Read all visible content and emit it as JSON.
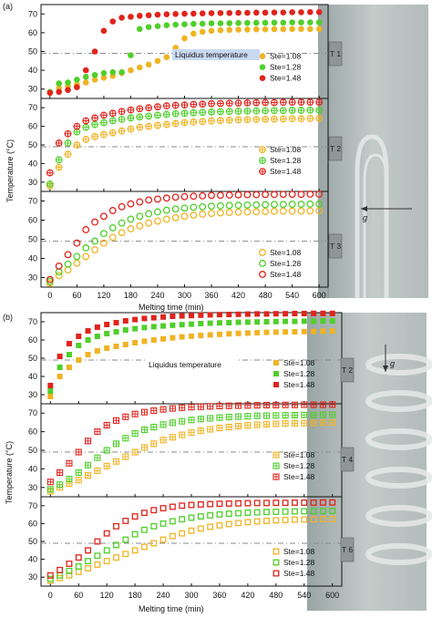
{
  "figure": {
    "panel_labels": [
      "(a)",
      "(b)"
    ],
    "liquidus_label": "Liquidus temperature",
    "gravity_label": "g",
    "colors": {
      "Ste=1.08": "#f0b323",
      "Ste=1.28": "#4fcf2a",
      "Ste=1.48": "#e0241c",
      "liquidus_box": "#c9d9f2",
      "photo": "#aeb8b8"
    }
  },
  "chart_data": [
    {
      "type": "scatter",
      "panel": "(a)",
      "marker": "filled-circle",
      "xlabel": "Melting time (min)",
      "ylabel": "Temperature (°C)",
      "xlim": [
        -20,
        620
      ],
      "ylim": [
        25,
        75
      ],
      "xticks": [
        0,
        60,
        120,
        180,
        240,
        300,
        360,
        420,
        480,
        540,
        600
      ],
      "yticks": [
        30,
        40,
        50,
        60,
        70
      ],
      "thermocouple": "T 1",
      "liquidus": 49,
      "legend_position": "right",
      "x": [
        0,
        20,
        40,
        60,
        80,
        100,
        120,
        140,
        160,
        180,
        200,
        220,
        240,
        260,
        280,
        300,
        320,
        340,
        360,
        380,
        400,
        420,
        440,
        460,
        480,
        500,
        520,
        540,
        560,
        580,
        600
      ],
      "series": [
        {
          "name": "Ste=1.08",
          "values": [
            28,
            30.5,
            31.5,
            32.5,
            33.5,
            35,
            36,
            37,
            38.5,
            40,
            41.5,
            43,
            45,
            47,
            52,
            57,
            59.5,
            60.5,
            61,
            61.3,
            61.5,
            61.6,
            61.7,
            61.8,
            61.8,
            61.9,
            61.9,
            62,
            62,
            62,
            62
          ]
        },
        {
          "name": "Ste=1.28",
          "values": [
            28.5,
            33,
            33.5,
            35,
            36.5,
            37.5,
            38.5,
            39,
            39,
            48,
            62,
            63,
            63.5,
            64,
            64.3,
            64.5,
            64.7,
            64.8,
            65,
            65,
            65.1,
            65.2,
            65.2,
            65.3,
            65.3,
            65.4,
            65.4,
            65.5,
            65.5,
            65.5,
            65.5
          ]
        },
        {
          "name": "Ste=1.48",
          "values": [
            28,
            28.5,
            29.5,
            31,
            40,
            50,
            61,
            66,
            68,
            68.5,
            69,
            69.3,
            69.6,
            69.8,
            70,
            70.1,
            70.2,
            70.3,
            70.4,
            70.5,
            70.5,
            70.6,
            70.6,
            70.7,
            70.7,
            70.8,
            70.8,
            70.9,
            70.9,
            71,
            71
          ]
        }
      ]
    },
    {
      "type": "scatter",
      "panel": "(a)",
      "marker": "crossed-circle",
      "xlabel": "Melting time (min)",
      "ylabel": "Temperature (°C)",
      "xlim": [
        -20,
        620
      ],
      "ylim": [
        25,
        75
      ],
      "xticks": [
        0,
        60,
        120,
        180,
        240,
        300,
        360,
        420,
        480,
        540,
        600
      ],
      "yticks": [
        30,
        40,
        50,
        60,
        70
      ],
      "thermocouple": "T 2",
      "liquidus": 49,
      "legend_position": "right",
      "x": [
        0,
        20,
        40,
        60,
        80,
        100,
        120,
        140,
        160,
        180,
        200,
        220,
        240,
        260,
        280,
        300,
        320,
        340,
        360,
        380,
        400,
        420,
        440,
        460,
        480,
        500,
        520,
        540,
        560,
        580,
        600
      ],
      "series": [
        {
          "name": "Ste=1.08",
          "values": [
            28,
            38,
            45,
            50,
            53,
            54.5,
            55.5,
            56.5,
            57.5,
            58.5,
            59.5,
            60,
            60.5,
            61,
            61.5,
            62,
            62.3,
            62.6,
            62.9,
            63.1,
            63.3,
            63.5,
            63.6,
            63.7,
            63.8,
            63.9,
            64,
            64.1,
            64.1,
            64.2,
            64.2
          ]
        },
        {
          "name": "Ste=1.28",
          "values": [
            29,
            42,
            51,
            57,
            59.5,
            61,
            62,
            63,
            63.8,
            64.5,
            65,
            65.5,
            66,
            66.4,
            66.8,
            67,
            67.3,
            67.5,
            67.7,
            67.9,
            68,
            68.1,
            68.2,
            68.3,
            68.4,
            68.5,
            68.5,
            68.6,
            68.6,
            68.7,
            68.7
          ]
        },
        {
          "name": "Ste=1.48",
          "values": [
            35,
            51,
            56,
            60,
            63,
            64.5,
            66,
            67,
            68,
            68.8,
            69.5,
            70,
            70.5,
            71,
            71.3,
            71.5,
            71.8,
            72,
            72.2,
            72.3,
            72.4,
            72.5,
            72.6,
            72.7,
            72.8,
            72.8,
            72.9,
            73,
            73,
            73,
            73
          ]
        }
      ]
    },
    {
      "type": "scatter",
      "panel": "(a)",
      "marker": "open-circle",
      "xlabel": "Melting time (min)",
      "ylabel": "Temperature (°C)",
      "xlim": [
        -20,
        620
      ],
      "ylim": [
        25,
        75
      ],
      "xticks": [
        0,
        60,
        120,
        180,
        240,
        300,
        360,
        420,
        480,
        540,
        600
      ],
      "yticks": [
        30,
        40,
        50,
        60,
        70
      ],
      "thermocouple": "T 3",
      "liquidus": 49,
      "legend_position": "bottom-right",
      "x": [
        0,
        20,
        40,
        60,
        80,
        100,
        120,
        140,
        160,
        180,
        200,
        220,
        240,
        260,
        280,
        300,
        320,
        340,
        360,
        380,
        400,
        420,
        440,
        460,
        480,
        500,
        520,
        540,
        560,
        580,
        600
      ],
      "series": [
        {
          "name": "Ste=1.08",
          "values": [
            27,
            31,
            34,
            37.5,
            41,
            44.5,
            48,
            51,
            53.5,
            55.5,
            57,
            58.5,
            59.5,
            60.5,
            61.3,
            62,
            62.6,
            63.1,
            63.5,
            63.8,
            64,
            64.2,
            64.3,
            64.4,
            64.5,
            64.6,
            64.7,
            64.7,
            64.8,
            64.8,
            64.9
          ]
        },
        {
          "name": "Ste=1.28",
          "values": [
            28,
            33,
            37,
            41,
            45.5,
            49,
            53,
            56,
            58.5,
            60.5,
            62,
            63.3,
            64.3,
            65.2,
            65.8,
            66.3,
            66.7,
            67,
            67.3,
            67.5,
            67.7,
            67.8,
            67.9,
            68,
            68.1,
            68.2,
            68.2,
            68.3,
            68.3,
            68.4,
            68.4
          ]
        },
        {
          "name": "Ste=1.48",
          "values": [
            29,
            36,
            42,
            48,
            55,
            59,
            62,
            65,
            67,
            68.5,
            69.5,
            70.5,
            71,
            71.5,
            72,
            72.3,
            72.5,
            72.7,
            72.9,
            73,
            73.1,
            73.2,
            73.3,
            73.3,
            73.4,
            73.4,
            73.5,
            73.5,
            73.5,
            73.6,
            73.6
          ]
        }
      ]
    },
    {
      "type": "scatter",
      "panel": "(b)",
      "marker": "filled-square",
      "xlabel": "Melting time (min)",
      "ylabel": "Temperature (°C)",
      "xlim": [
        -20,
        620
      ],
      "ylim": [
        25,
        75
      ],
      "xticks": [
        0,
        60,
        120,
        180,
        240,
        300,
        360,
        420,
        480,
        540,
        600
      ],
      "yticks": [
        30,
        40,
        50,
        60,
        70
      ],
      "thermocouple": "T 2",
      "liquidus": 49,
      "legend_position": "right",
      "x": [
        0,
        20,
        40,
        60,
        80,
        100,
        120,
        140,
        160,
        180,
        200,
        220,
        240,
        260,
        280,
        300,
        320,
        340,
        360,
        380,
        400,
        420,
        440,
        460,
        480,
        500,
        520,
        540,
        560,
        580,
        600
      ],
      "series": [
        {
          "name": "Ste=1.08",
          "values": [
            29,
            40,
            45,
            49,
            52,
            54,
            55.5,
            56.5,
            57.5,
            58.5,
            59.3,
            60,
            60.6,
            61.2,
            61.7,
            62.1,
            62.5,
            62.8,
            63.1,
            63.4,
            63.6,
            63.8,
            64,
            64.2,
            64.3,
            64.4,
            64.5,
            64.6,
            64.7,
            64.8,
            64.9
          ]
        },
        {
          "name": "Ste=1.28",
          "values": [
            32,
            45,
            52,
            57,
            60,
            62,
            63.5,
            64.5,
            65.5,
            66.2,
            66.8,
            67.3,
            67.7,
            68.1,
            68.4,
            68.7,
            69,
            69.2,
            69.4,
            69.5,
            69.7,
            69.8,
            69.9,
            70,
            70.1,
            70.2,
            70.2,
            70.3,
            70.3,
            70.4,
            70.4
          ]
        },
        {
          "name": "Ste=1.48",
          "values": [
            35,
            51,
            58,
            62,
            65,
            67,
            68.5,
            69.5,
            70.5,
            71.2,
            71.8,
            72.2,
            72.6,
            73,
            73.2,
            73.4,
            73.6,
            73.8,
            73.9,
            74,
            74.1,
            74.2,
            74.3,
            74.3,
            74.4,
            74.4,
            74.5,
            74.5,
            74.6,
            74.6,
            74.6
          ]
        }
      ]
    },
    {
      "type": "scatter",
      "panel": "(b)",
      "marker": "crossed-square",
      "xlabel": "Melting time (min)",
      "ylabel": "Temperature (°C)",
      "xlim": [
        -20,
        620
      ],
      "ylim": [
        25,
        75
      ],
      "xticks": [
        0,
        60,
        120,
        180,
        240,
        300,
        360,
        420,
        480,
        540,
        600
      ],
      "yticks": [
        30,
        40,
        50,
        60,
        70
      ],
      "thermocouple": "T 4",
      "liquidus": 49,
      "legend_position": "right",
      "x": [
        0,
        20,
        40,
        60,
        80,
        100,
        120,
        140,
        160,
        180,
        200,
        220,
        240,
        260,
        280,
        300,
        320,
        340,
        360,
        380,
        400,
        420,
        440,
        460,
        480,
        500,
        520,
        540,
        560,
        580,
        600
      ],
      "series": [
        {
          "name": "Ste=1.08",
          "values": [
            28,
            30,
            32,
            34,
            36.5,
            39,
            41.5,
            44,
            46.5,
            49,
            51.5,
            53.5,
            55.5,
            57,
            58.3,
            59.5,
            60.5,
            61.3,
            62,
            62.5,
            63,
            63.4,
            63.7,
            64,
            64.2,
            64.4,
            64.5,
            64.6,
            64.7,
            64.8,
            64.9
          ]
        },
        {
          "name": "Ste=1.28",
          "values": [
            29,
            31.5,
            34.5,
            38,
            42,
            46,
            50,
            53.5,
            56.5,
            59,
            61,
            62.5,
            63.8,
            64.8,
            65.6,
            66.3,
            66.8,
            67.2,
            67.6,
            67.9,
            68.1,
            68.3,
            68.5,
            68.6,
            68.7,
            68.8,
            68.9,
            69,
            69,
            69.1,
            69.1
          ]
        },
        {
          "name": "Ste=1.48",
          "values": [
            33,
            38,
            43,
            49,
            55,
            60,
            63.5,
            66,
            68,
            69.5,
            70.5,
            71.3,
            72,
            72.5,
            72.9,
            73.2,
            73.4,
            73.6,
            73.8,
            73.9,
            74,
            74.1,
            74.2,
            74.3,
            74.3,
            74.4,
            74.4,
            74.5,
            74.5,
            74.5,
            74.6
          ]
        }
      ]
    },
    {
      "type": "scatter",
      "panel": "(b)",
      "marker": "open-square",
      "xlabel": "Melting time (min)",
      "ylabel": "Temperature (°C)",
      "xlim": [
        -20,
        620
      ],
      "ylim": [
        25,
        75
      ],
      "xticks": [
        0,
        60,
        120,
        180,
        240,
        300,
        360,
        420,
        480,
        540,
        600
      ],
      "yticks": [
        30,
        40,
        50,
        60,
        70
      ],
      "thermocouple": "T 6",
      "liquidus": 49,
      "legend_position": "bottom-right",
      "x": [
        0,
        20,
        40,
        60,
        80,
        100,
        120,
        140,
        160,
        180,
        200,
        220,
        240,
        260,
        280,
        300,
        320,
        340,
        360,
        380,
        400,
        420,
        440,
        460,
        480,
        500,
        520,
        540,
        560,
        580,
        600
      ],
      "series": [
        {
          "name": "Ste=1.08",
          "values": [
            28,
            29.5,
            31,
            33,
            35,
            37,
            39,
            41,
            43,
            45,
            47,
            49,
            51,
            53,
            54.5,
            56,
            57.2,
            58.2,
            59,
            59.7,
            60.3,
            60.8,
            61.2,
            61.5,
            61.8,
            62,
            62.2,
            62.3,
            62.4,
            62.5,
            62.6
          ]
        },
        {
          "name": "Ste=1.28",
          "values": [
            29,
            31,
            33.5,
            36,
            39,
            42,
            45,
            48,
            51,
            54,
            56.5,
            58.5,
            60,
            61.3,
            62.4,
            63.3,
            64,
            64.6,
            65.1,
            65.5,
            65.8,
            66.1,
            66.3,
            66.5,
            66.6,
            66.7,
            66.8,
            66.9,
            67,
            67,
            67.1
          ]
        },
        {
          "name": "Ste=1.48",
          "values": [
            31,
            34,
            37.5,
            41,
            45,
            50,
            54.5,
            58.5,
            61.5,
            64,
            66,
            67.5,
            68.6,
            69.4,
            70,
            70.4,
            70.7,
            70.9,
            71.1,
            71.2,
            71.3,
            71.4,
            71.5,
            71.5,
            71.6,
            71.6,
            71.7,
            71.7,
            71.7,
            71.8,
            71.8
          ]
        }
      ]
    }
  ]
}
